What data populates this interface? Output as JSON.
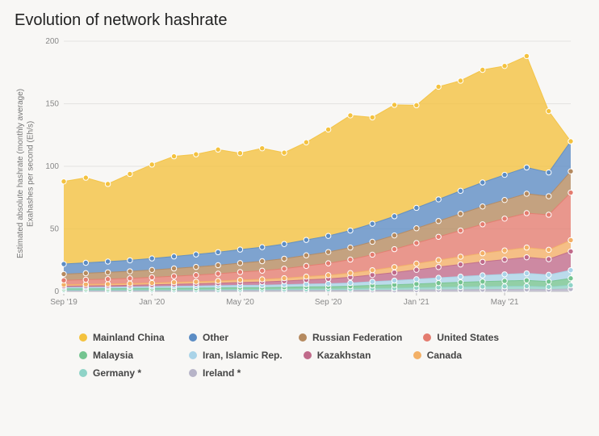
{
  "title": "Evolution of network hashrate",
  "ylabel_line1": "Estimated absolute hashrate (monthly average)",
  "ylabel_line2": "Exahashes per second (Eh/s)",
  "chart": {
    "type": "stacked-area",
    "background_color": "#f8f7f5",
    "grid_color": "#e4e3e1",
    "axis_text_color": "#888888",
    "title_fontsize": 20,
    "label_fontsize": 10,
    "marker_radius": 3.2,
    "marker_stroke": "#ffffff",
    "ylim": [
      0,
      200
    ],
    "yticks": [
      0,
      50,
      100,
      150,
      200
    ],
    "x_labels": [
      "Sep '19",
      "",
      "",
      "",
      "Jan '20",
      "",
      "",
      "",
      "May '20",
      "",
      "",
      "",
      "Sep '20",
      "",
      "",
      "",
      "Jan '21",
      "",
      "",
      "",
      "May '21",
      "",
      "",
      ""
    ],
    "x_tick_indices": [
      0,
      4,
      8,
      12,
      16,
      20
    ],
    "n_points": 24,
    "series": [
      {
        "name": "Ireland *",
        "color": "#b7b4c8",
        "values": [
          0.5,
          0.5,
          0.5,
          0.5,
          0.6,
          0.6,
          0.6,
          0.7,
          0.7,
          0.7,
          0.8,
          0.8,
          0.8,
          0.9,
          1.0,
          1.0,
          1.2,
          1.3,
          1.4,
          1.5,
          1.6,
          1.7,
          1.5,
          2.0
        ]
      },
      {
        "name": "Germany *",
        "color": "#8fd3c7",
        "values": [
          0.6,
          0.6,
          0.6,
          0.7,
          0.7,
          0.7,
          0.8,
          0.8,
          0.9,
          0.9,
          1.0,
          1.1,
          1.1,
          1.2,
          1.4,
          1.6,
          1.8,
          2.0,
          2.2,
          2.4,
          2.5,
          2.6,
          2.2,
          3.0
        ]
      },
      {
        "name": "Malaysia",
        "color": "#74c490",
        "values": [
          1.0,
          1.0,
          1.1,
          1.1,
          1.2,
          1.3,
          1.3,
          1.4,
          1.5,
          1.5,
          1.6,
          1.8,
          1.9,
          2.1,
          2.4,
          2.7,
          3.0,
          3.4,
          3.7,
          4.0,
          4.3,
          4.6,
          4.2,
          5.5
        ]
      },
      {
        "name": "Iran, Islamic Rep.",
        "color": "#a9d3e8",
        "values": [
          1.1,
          1.2,
          1.2,
          1.3,
          1.4,
          1.5,
          1.6,
          1.7,
          1.8,
          1.9,
          2.0,
          2.2,
          2.4,
          2.6,
          3.0,
          3.4,
          3.8,
          4.2,
          4.6,
          5.0,
          5.3,
          5.6,
          5.4,
          6.5
        ]
      },
      {
        "name": "Kazakhstan",
        "color": "#c06a8a",
        "values": [
          1.0,
          1.1,
          1.2,
          1.3,
          1.4,
          1.6,
          1.8,
          2.0,
          2.3,
          2.6,
          2.9,
          3.4,
          3.9,
          4.6,
          5.4,
          6.4,
          7.5,
          8.6,
          9.7,
          10.8,
          11.8,
          12.8,
          12.5,
          15.0
        ]
      },
      {
        "name": "Canada",
        "color": "#f3b066",
        "values": [
          1.2,
          1.3,
          1.3,
          1.4,
          1.5,
          1.6,
          1.7,
          1.8,
          2.0,
          2.1,
          2.3,
          2.6,
          2.9,
          3.3,
          3.8,
          4.4,
          5.0,
          5.6,
          6.2,
          6.8,
          7.3,
          7.8,
          7.5,
          9.0
        ]
      },
      {
        "name": "United States",
        "color": "#e47c6f",
        "values": [
          3.5,
          3.7,
          4.0,
          4.2,
          4.5,
          4.9,
          5.3,
          5.8,
          6.3,
          6.9,
          7.6,
          8.5,
          9.5,
          10.8,
          12.4,
          14.3,
          16.4,
          18.6,
          20.9,
          23.2,
          25.4,
          27.5,
          28.0,
          38.0
        ]
      },
      {
        "name": "Russian Federation",
        "color": "#b58a5f",
        "values": [
          5.0,
          5.2,
          5.4,
          5.6,
          5.9,
          6.2,
          6.5,
          6.8,
          7.2,
          7.6,
          8.0,
          8.5,
          9.0,
          9.6,
          10.3,
          11.0,
          11.8,
          12.6,
          13.4,
          14.2,
          14.9,
          15.5,
          14.8,
          17.0
        ]
      },
      {
        "name": "Other",
        "color": "#5b8cc4",
        "values": [
          8.0,
          8.3,
          8.6,
          8.8,
          9.2,
          9.6,
          10.0,
          10.4,
          10.8,
          11.2,
          11.7,
          12.3,
          12.9,
          13.6,
          14.4,
          15.3,
          16.3,
          17.3,
          18.3,
          19.2,
          20.1,
          21.0,
          19.0,
          24.0
        ]
      },
      {
        "name": "Mainland China",
        "color": "#f4c23e",
        "values": [
          66,
          68,
          62,
          69,
          75,
          80,
          80,
          82,
          77,
          79,
          73,
          78,
          85,
          92,
          85,
          89,
          82,
          90,
          88,
          90,
          87,
          89,
          49,
          0
        ]
      }
    ],
    "legend_order": [
      "Mainland China",
      "Other",
      "Russian Federation",
      "United States",
      "Malaysia",
      "Iran, Islamic Rep.",
      "Kazakhstan",
      "Canada",
      "Germany *",
      "Ireland *"
    ]
  }
}
